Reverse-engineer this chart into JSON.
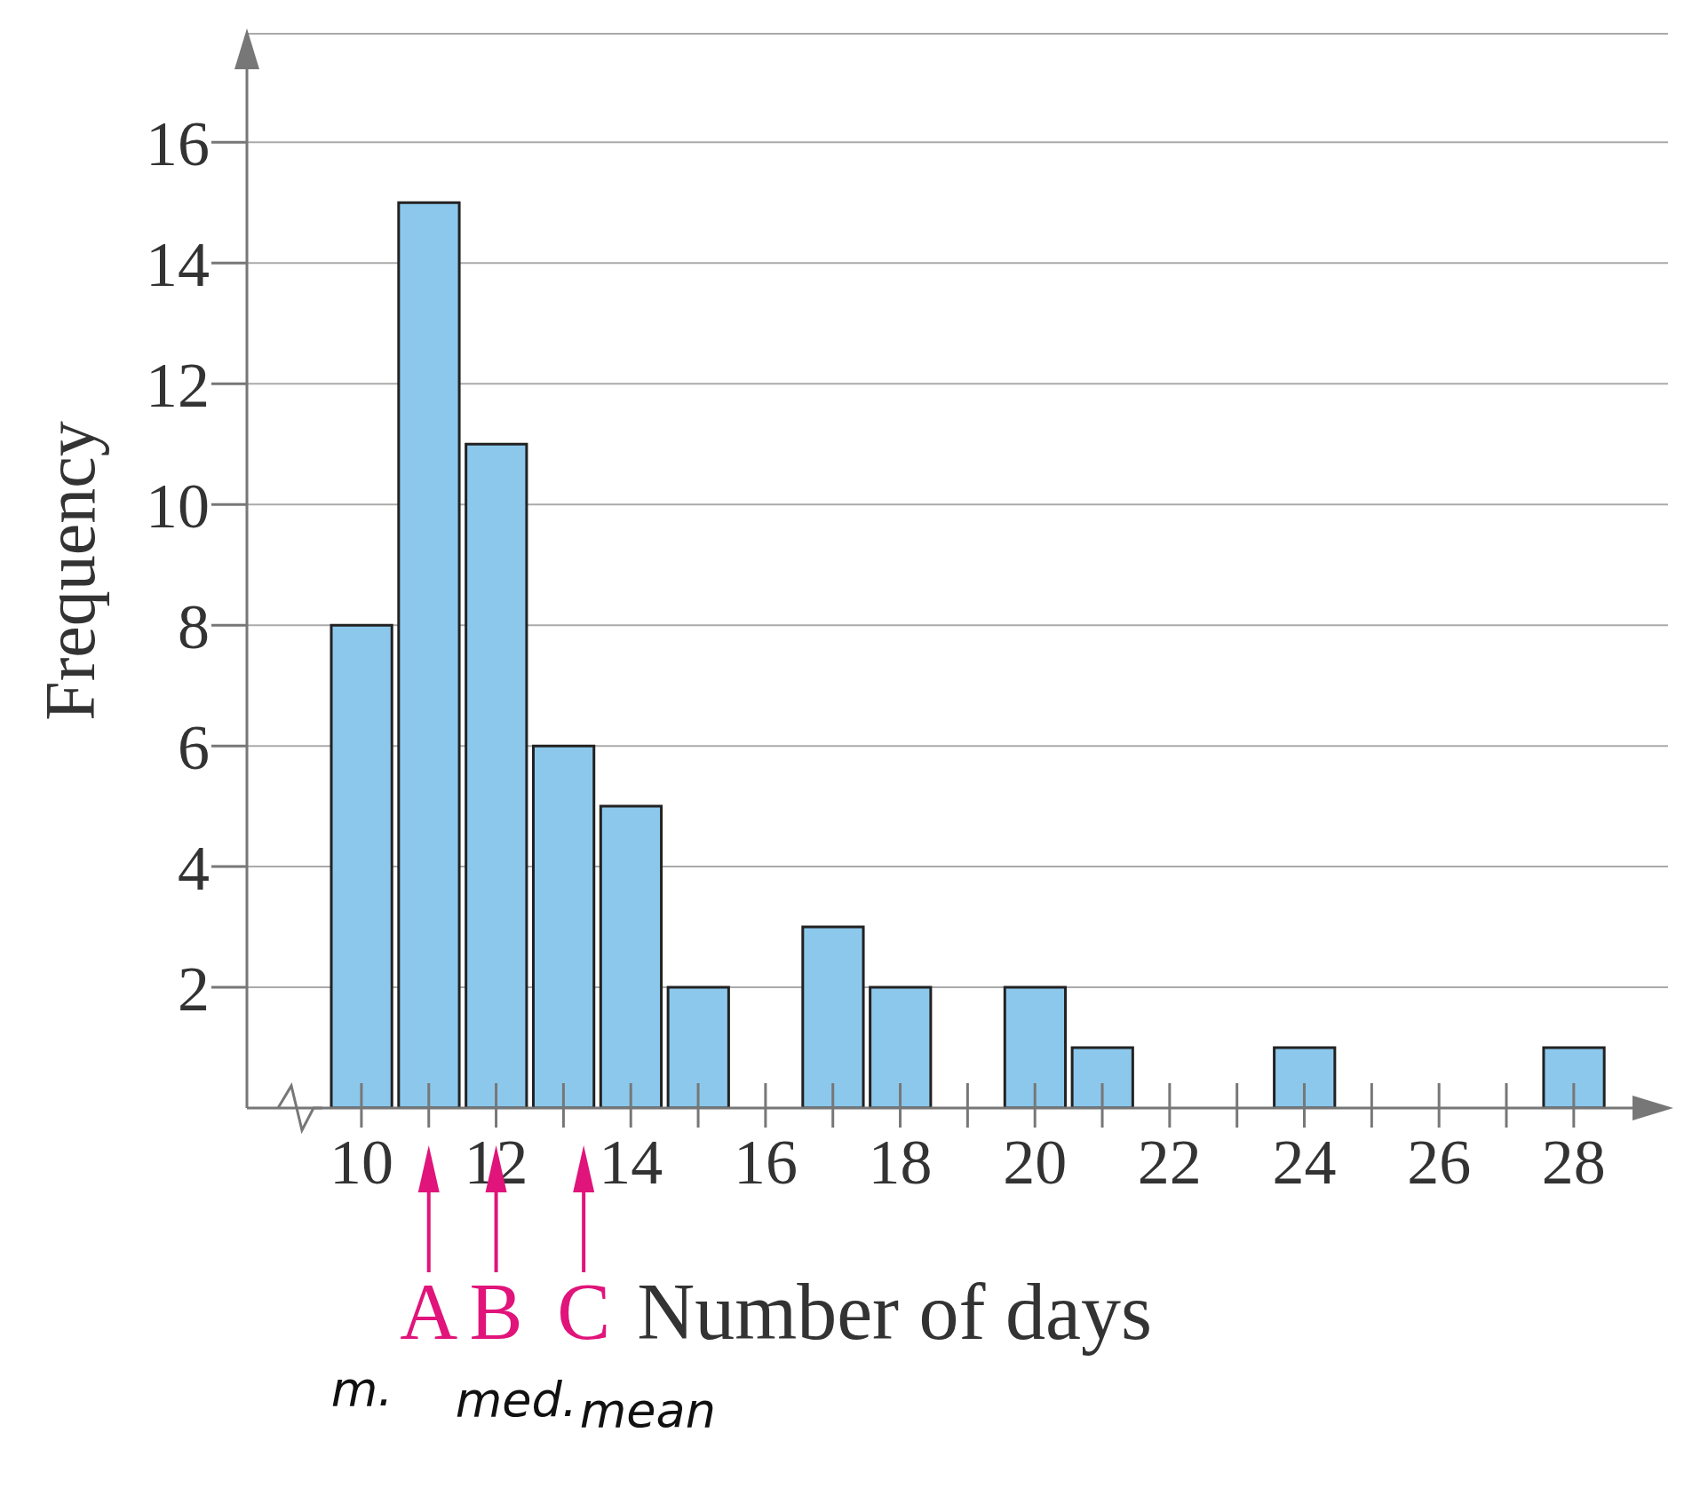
{
  "chart_data": {
    "type": "histogram",
    "xlabel": "Number of days",
    "ylabel": "Frequency",
    "bins": [
      9.5,
      10.5,
      11.5,
      12.5,
      13.5,
      14.5,
      15.5,
      16.5,
      17.5,
      18.5,
      19.5,
      20.5,
      21.5,
      22.5,
      23.5,
      24.5,
      25.5,
      26.5,
      27.5,
      28.5
    ],
    "values": [
      8,
      15,
      11,
      6,
      5,
      2,
      0,
      3,
      2,
      0,
      2,
      1,
      0,
      0,
      1,
      0,
      0,
      0,
      1
    ],
    "color": "#8cc8ec",
    "xlim": [
      8.3,
      29.4
    ],
    "ylim": [
      0,
      17.8
    ],
    "xticks": [
      10,
      12,
      14,
      16,
      18,
      20,
      22,
      24,
      26,
      28
    ],
    "yticks": [
      2,
      4,
      6,
      8,
      10,
      12,
      14,
      16
    ],
    "grid": "y",
    "annotations": [
      {
        "text": "A",
        "x": 11,
        "y": 0
      },
      {
        "text": "B",
        "x": 12,
        "y": 0
      },
      {
        "text": "C",
        "x": 13.3,
        "y": 0
      },
      "m.",
      "med.",
      "mean"
    ]
  }
}
